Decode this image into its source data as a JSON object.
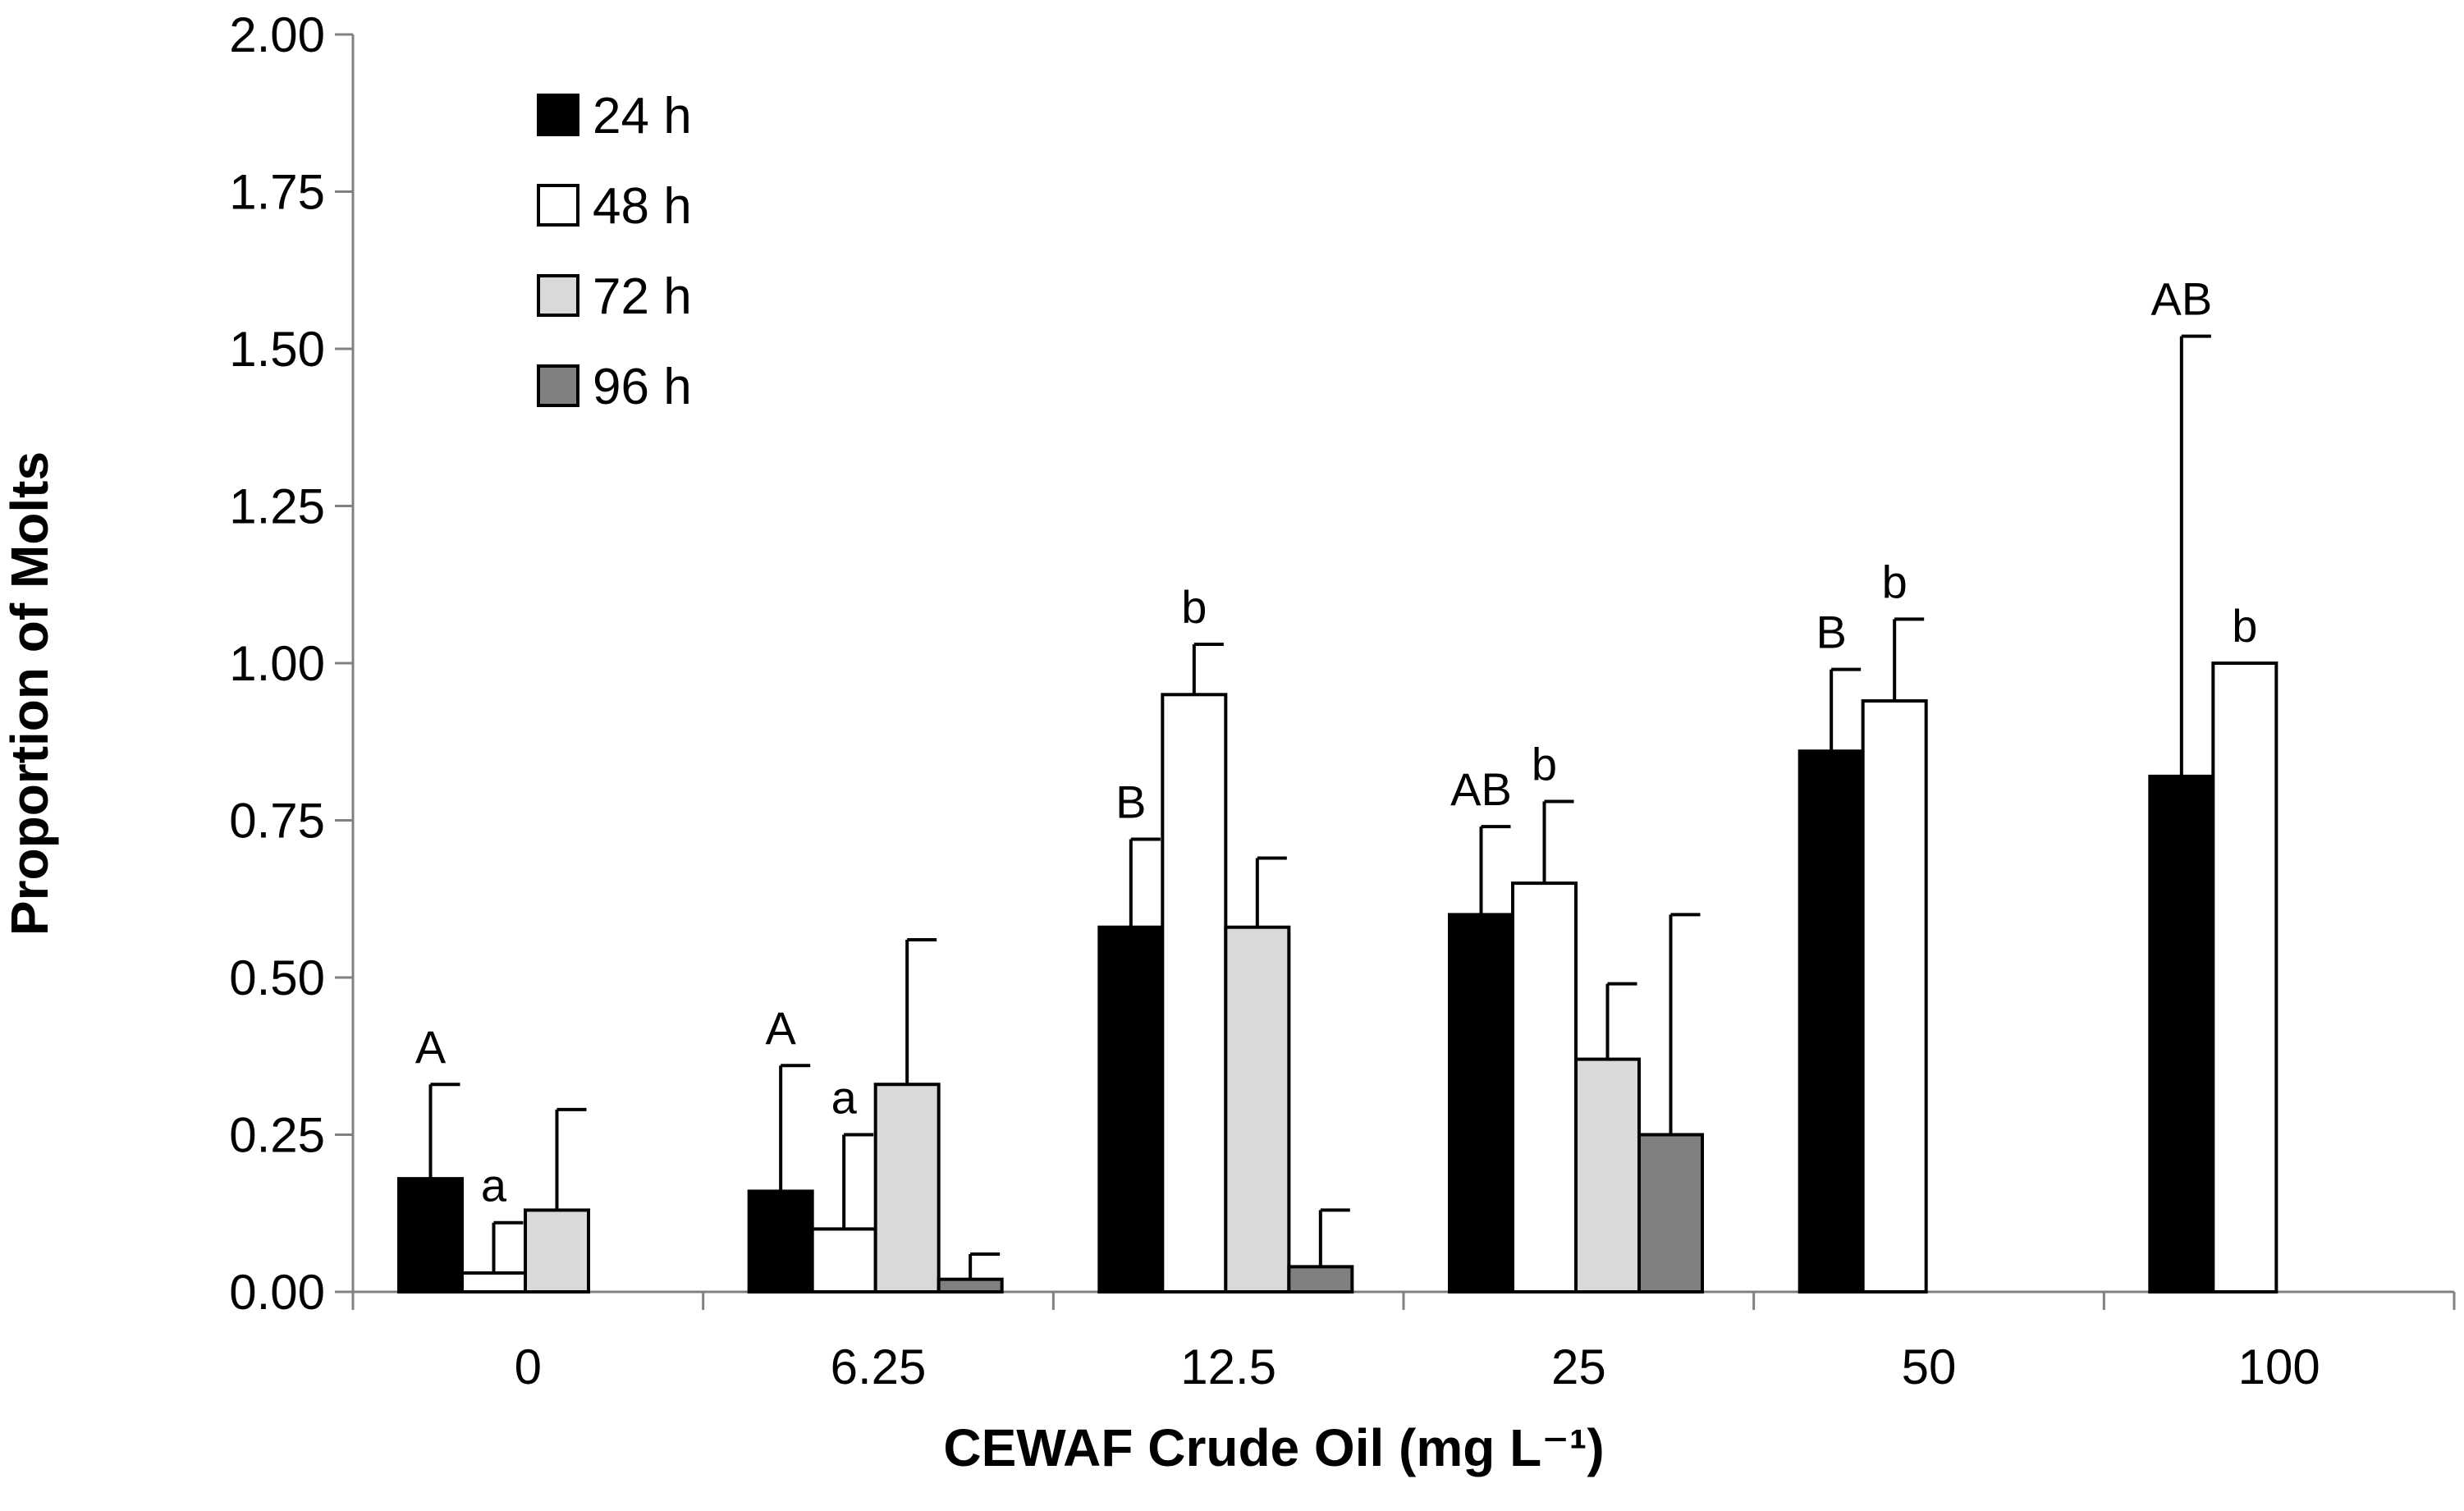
{
  "chart_data": {
    "type": "bar",
    "title": "",
    "xlabel": "CEWAF Crude Oil (mg L⁻¹)",
    "ylabel": "Proportion of Molts",
    "ylim": [
      0,
      2
    ],
    "yticks": [
      "0.00",
      "0.25",
      "0.50",
      "0.75",
      "1.00",
      "1.25",
      "1.50",
      "1.75",
      "2.00"
    ],
    "categories": [
      "0",
      "6.25",
      "12.5",
      "25",
      "50",
      "100"
    ],
    "legend_position": "top-left",
    "series": [
      {
        "name": "24 h",
        "color": "#000000",
        "values": [
          0.18,
          0.16,
          0.58,
          0.6,
          0.86,
          0.82
        ],
        "error": [
          0.15,
          0.2,
          0.14,
          0.14,
          0.13,
          0.7
        ],
        "labels": [
          "A",
          "A",
          "B",
          "AB",
          "B",
          "AB"
        ]
      },
      {
        "name": "48 h",
        "color": "#ffffff",
        "values": [
          0.03,
          0.1,
          0.95,
          0.65,
          0.94,
          1.0
        ],
        "error": [
          0.08,
          0.15,
          0.08,
          0.13,
          0.13,
          0.0
        ],
        "labels": [
          "a",
          "a",
          "b",
          "b",
          "b",
          "b"
        ]
      },
      {
        "name": "72 h",
        "color": "#d9d9d9",
        "values": [
          0.13,
          0.33,
          0.58,
          0.37,
          null,
          null
        ],
        "error": [
          0.16,
          0.23,
          0.11,
          0.12,
          null,
          null
        ],
        "labels": [
          "",
          "",
          "",
          "",
          "",
          ""
        ]
      },
      {
        "name": "96 h",
        "color": "#808080",
        "values": [
          null,
          0.02,
          0.04,
          0.25,
          null,
          null
        ],
        "error": [
          null,
          0.04,
          0.09,
          0.35,
          null,
          null
        ],
        "labels": [
          "",
          "",
          "",
          "",
          "",
          ""
        ]
      }
    ]
  }
}
